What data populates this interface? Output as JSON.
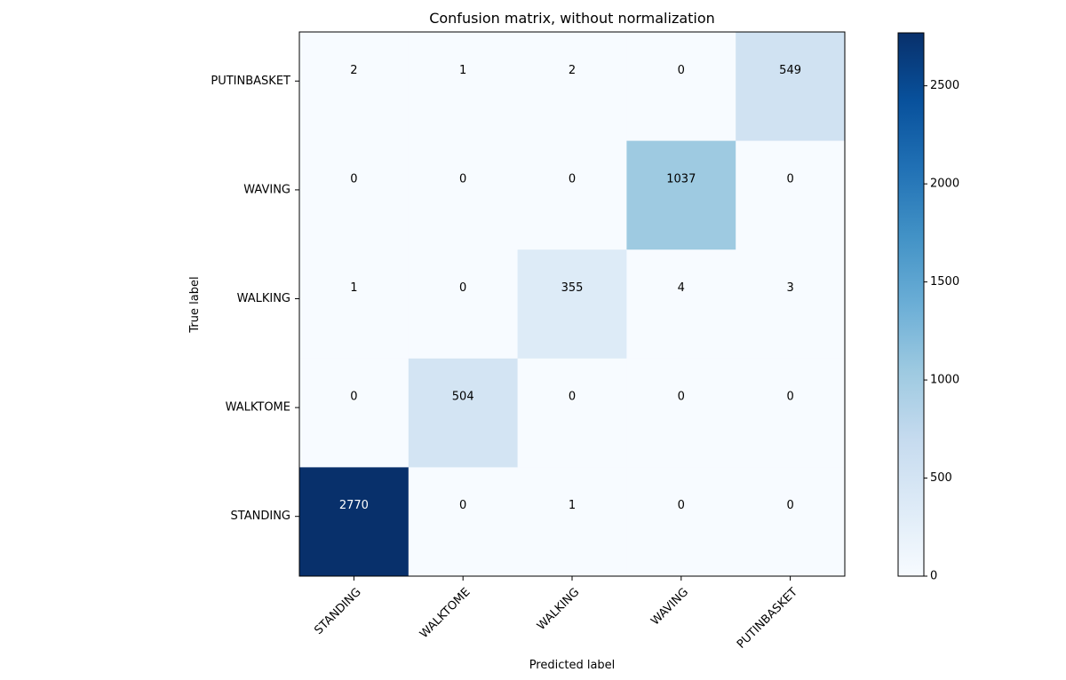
{
  "chart_data": {
    "type": "heatmap",
    "title": "Confusion matrix, without normalization",
    "xlabel": "Predicted label",
    "ylabel": "True label",
    "x_categories": [
      "STANDING",
      "WALKTOME",
      "WALKING",
      "WAVING",
      "PUTINBASKET"
    ],
    "y_categories_top_to_bottom": [
      "PUTINBASKET",
      "WAVING",
      "WALKING",
      "WALKTOME",
      "STANDING"
    ],
    "matrix_top_to_bottom": [
      [
        2,
        1,
        2,
        0,
        549
      ],
      [
        0,
        0,
        0,
        1037,
        0
      ],
      [
        1,
        0,
        355,
        4,
        3
      ],
      [
        0,
        504,
        0,
        0,
        0
      ],
      [
        2770,
        0,
        1,
        0,
        0
      ]
    ],
    "colorbar": {
      "cmap": "Blues",
      "min": 0,
      "max": 2770,
      "ticks": [
        0,
        500,
        1000,
        1500,
        2000,
        2500
      ]
    }
  }
}
